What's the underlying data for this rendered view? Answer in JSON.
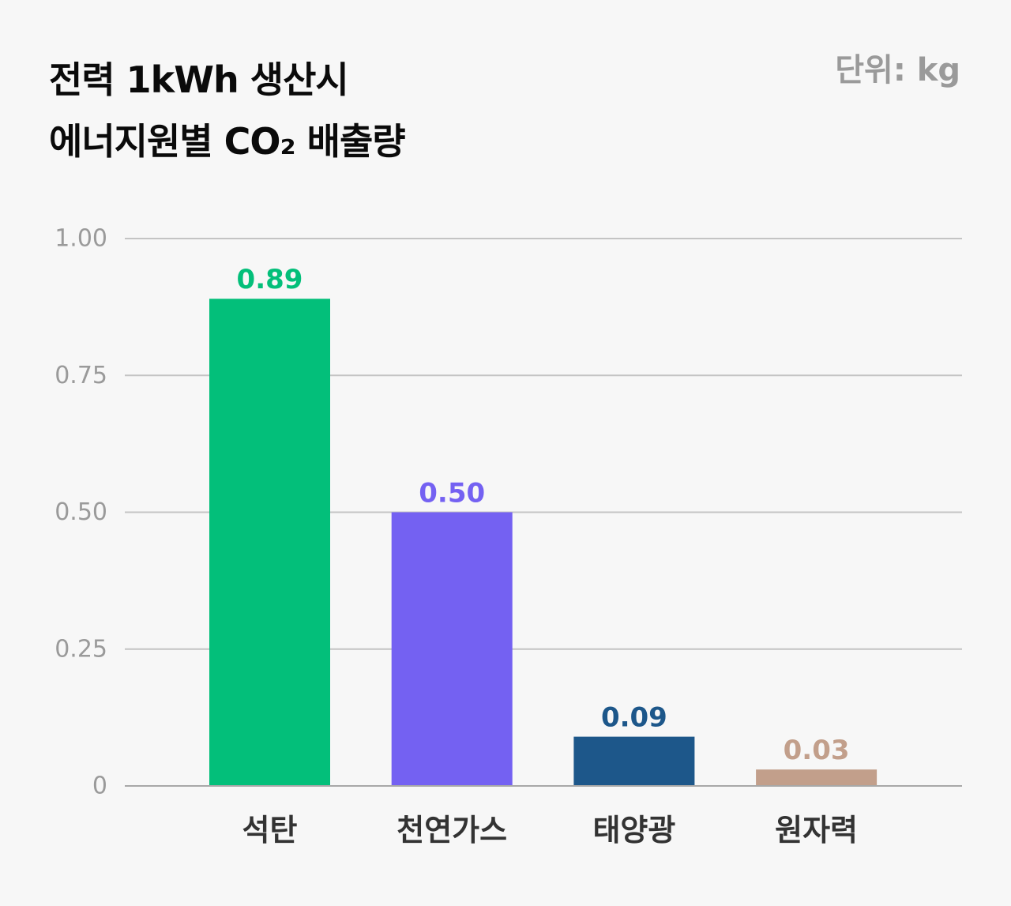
{
  "chart_data": {
    "type": "bar",
    "title_lines": [
      "전력 1kWh 생산시",
      "에너지원별 CO₂ 배출량"
    ],
    "unit_label": "단위: kg",
    "categories": [
      "석탄",
      "천연가스",
      "태양광",
      "원자력"
    ],
    "values": [
      0.89,
      0.5,
      0.09,
      0.03
    ],
    "value_labels": [
      "0.89",
      "0.50",
      "0.09",
      "0.03"
    ],
    "colors": [
      "#03bf7a",
      "#7461f2",
      "#1d578a",
      "#c29f8b"
    ],
    "y_ticks": [
      0,
      0.25,
      0.5,
      0.75,
      1.0
    ],
    "y_tick_labels": [
      "0",
      "0.25",
      "0.50",
      "0.75",
      "1.00"
    ],
    "ylim": [
      0,
      1.0
    ],
    "grid": true,
    "gridline_color": "#c4c4c4"
  }
}
